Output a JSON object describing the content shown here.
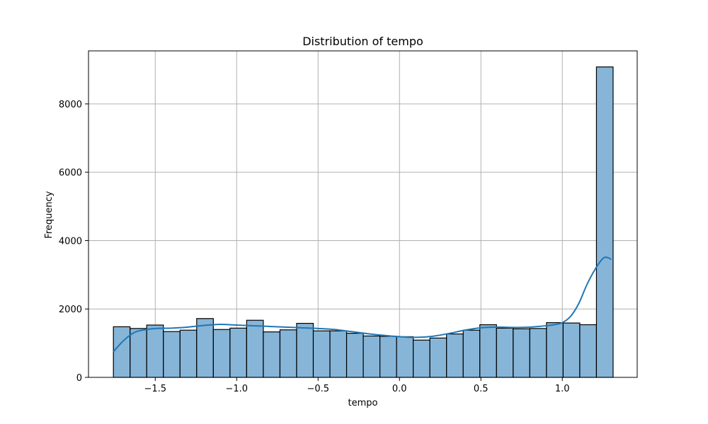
{
  "chart_data": {
    "type": "bar",
    "title": "Distribution of tempo",
    "xlabel": "tempo",
    "ylabel": "Frequency",
    "xlim": [
      -1.91,
      1.46
    ],
    "ylim": [
      0,
      9550
    ],
    "xticks": [
      -1.5,
      -1.0,
      -0.5,
      0.0,
      0.5,
      1.0
    ],
    "xtick_labels": [
      "−1.5",
      "−1.0",
      "−0.5",
      "0.0",
      "0.5",
      "1.0"
    ],
    "yticks": [
      0,
      2000,
      4000,
      6000,
      8000
    ],
    "ytick_labels": [
      "0",
      "2000",
      "4000",
      "6000",
      "8000"
    ],
    "grid": true,
    "bins": {
      "start": -1.757,
      "width": 0.1023,
      "counts": [
        1480,
        1430,
        1530,
        1340,
        1380,
        1720,
        1400,
        1440,
        1670,
        1330,
        1390,
        1580,
        1360,
        1360,
        1290,
        1210,
        1200,
        1190,
        1090,
        1150,
        1270,
        1380,
        1540,
        1440,
        1420,
        1430,
        1600,
        1590,
        1540,
        9080
      ]
    },
    "kde": {
      "x": [
        -1.757,
        -1.7,
        -1.65,
        -1.6,
        -1.5,
        -1.4,
        -1.3,
        -1.2,
        -1.1,
        -1.0,
        -0.9,
        -0.8,
        -0.7,
        -0.6,
        -0.5,
        -0.4,
        -0.3,
        -0.2,
        -0.1,
        0.0,
        0.1,
        0.2,
        0.3,
        0.4,
        0.5,
        0.6,
        0.7,
        0.8,
        0.9,
        0.95,
        1.0,
        1.05,
        1.1,
        1.15,
        1.2,
        1.25,
        1.28,
        1.3
      ],
      "y": [
        750,
        1050,
        1250,
        1360,
        1430,
        1440,
        1470,
        1520,
        1550,
        1530,
        1510,
        1490,
        1470,
        1450,
        1430,
        1400,
        1340,
        1280,
        1230,
        1190,
        1170,
        1200,
        1280,
        1380,
        1450,
        1470,
        1460,
        1470,
        1510,
        1540,
        1600,
        1780,
        2150,
        2700,
        3150,
        3480,
        3500,
        3450
      ]
    },
    "colors": {
      "bar_fill": "#86b5d8",
      "bar_edge": "#000000",
      "kde_line": "#1f77b4",
      "grid": "#b0b0b0"
    }
  }
}
